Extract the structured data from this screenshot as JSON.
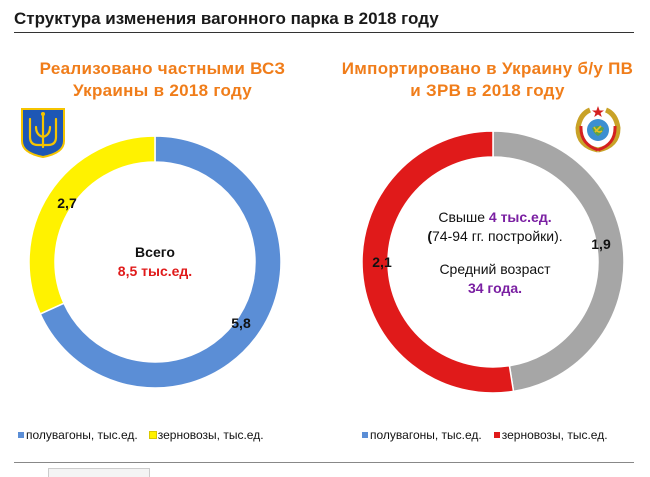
{
  "page_title": "Структура изменения вагонного парка в 2018 году",
  "colors": {
    "title_orange": "#f07d1a",
    "blue": "#5b8ed6",
    "yellow": "#fff200",
    "red": "#e01a1a",
    "grey": "#a6a6a6",
    "purple": "#7a1fa2"
  },
  "icons": {
    "left_emblem": "ukraine-trident-icon",
    "right_emblem": "ussr-emblem-icon"
  },
  "chart_data": [
    {
      "type": "pie",
      "variant": "donut",
      "title": "Реализовано частными ВСЗ Украины в 2018 году",
      "center": {
        "line1": "Всего",
        "line2": "8,5 тыс.ед."
      },
      "series": [
        {
          "name": "полувагоны, тыс.ед.",
          "value": 5.8,
          "label": "5,8",
          "color": "#5b8ed6"
        },
        {
          "name": "зерновозы, тыс.ед.",
          "value": 2.7,
          "label": "2,7",
          "color": "#fff200"
        }
      ],
      "legend": [
        "полувагоны, тыс.ед.",
        "зерновозы, тыс.ед."
      ],
      "legend_position": "bottom"
    },
    {
      "type": "pie",
      "variant": "donut",
      "title": "Импортировано в Украину б/у ПВ и ЗРВ в 2018 году",
      "center": {
        "prefix": "Свыше ",
        "amount": "4 тыс.ед.",
        "years_open": "(",
        "years": "74-94 гг. постройки).",
        "age_label": "Средний возраст",
        "age_value": "34 года."
      },
      "series": [
        {
          "name": "полувагоны, тыс.ед.",
          "value": 1.9,
          "label": "1,9",
          "color": "#a6a6a6"
        },
        {
          "name": "зерновозы, тыс.ед.",
          "value": 2.1,
          "label": "2,1",
          "color": "#e01a1a"
        }
      ],
      "legend": [
        "полувагоны, тыс.ед.",
        "зерновозы, тыс.ед."
      ],
      "legend_position": "bottom"
    }
  ]
}
